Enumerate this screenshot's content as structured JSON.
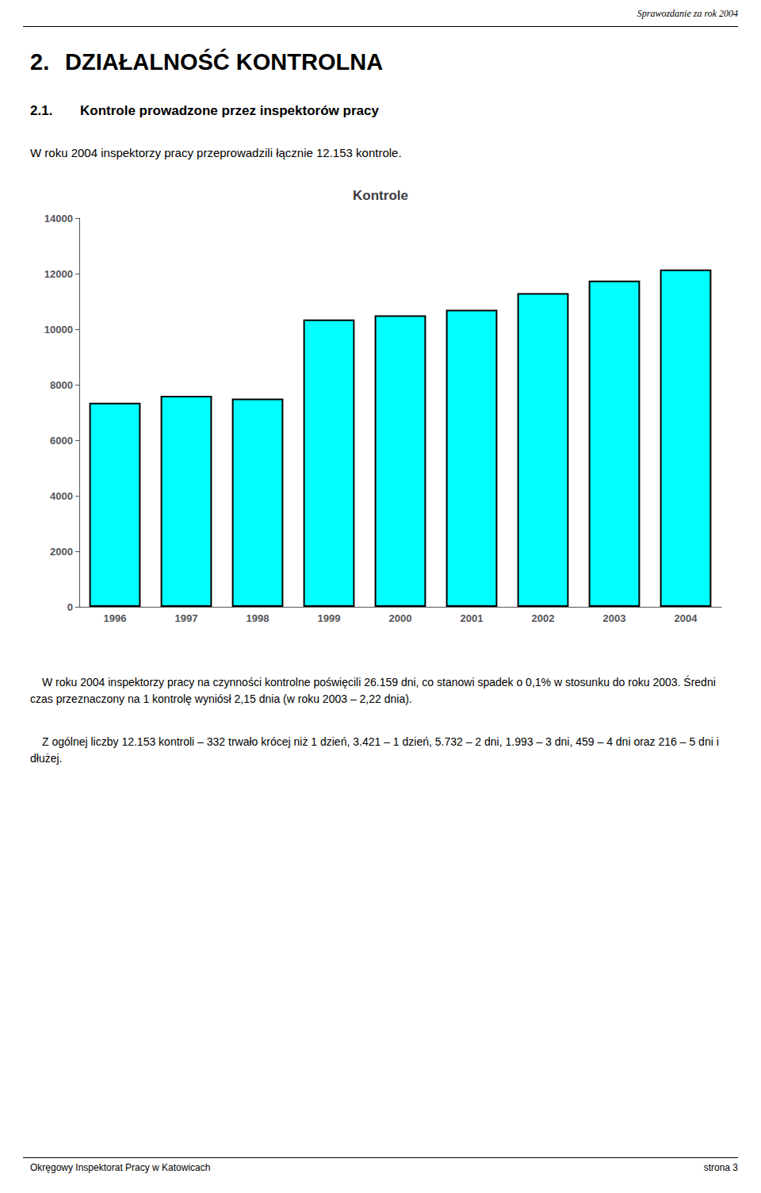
{
  "chart_data": {
    "type": "bar",
    "title": "Kontrole",
    "categories": [
      "1996",
      "1997",
      "1998",
      "1999",
      "2000",
      "2001",
      "2002",
      "2003",
      "2004"
    ],
    "values": [
      7350,
      7600,
      7500,
      10350,
      10500,
      10700,
      11300,
      11750,
      12153
    ],
    "color": "#00FFFF",
    "ylim": [
      0,
      14000
    ],
    "yticks": [
      0,
      2000,
      4000,
      6000,
      8000,
      10000,
      12000,
      14000
    ],
    "grid": false,
    "annotations": [
      "Sprawozdanie za rok 2004",
      "2.",
      "DZIAŁALNOŚĆ KONTROLNA",
      "2.1.",
      "Kontrole prowadzone przez inspektorów pracy",
      "W roku 2004 inspektorzy pracy przeprowadzili łącznie 12.153 kontrole.",
      "W roku 2004 inspektorzy pracy na czynności kontrolne poświęcili 26.159 dni, co stanowi spadek o 0,1% w stosunku do roku 2003. Średni czas przeznaczony na 1 kontrolę wyniósł 2,15 dnia (w roku 2003 – 2,22 dnia).",
      "Z ogólnej liczby 12.153 kontroli – 332 trwało krócej niż 1 dzień, 3.421 – 1 dzień, 5.732 – 2 dni, 1.993 – 3 dni, 459 – 4 dni oraz 216 – 5 dni i dłużej.",
      "Okręgowy Inspektorat Pracy w Katowicach",
      "strona 3"
    ]
  }
}
